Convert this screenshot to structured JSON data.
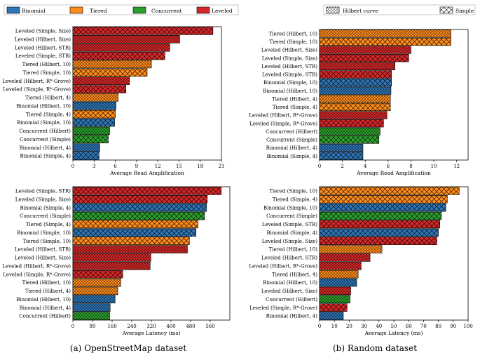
{
  "legend_left": [
    {
      "name": "Binomial",
      "color": "#2e75b6"
    },
    {
      "name": "Tiered",
      "color": "#ff8c1a"
    },
    {
      "name": "Concurrent",
      "color": "#2ca02c"
    },
    {
      "name": "Leveled",
      "color": "#d62728"
    }
  ],
  "legend_right": [
    {
      "name": "Hilbert curve",
      "pattern": "dots"
    },
    {
      "name": "Simple",
      "pattern": "cross"
    }
  ],
  "captions": {
    "left": "(a) OpenStreetMap dataset",
    "right": "(b) Random dataset"
  },
  "chart_data": [
    {
      "type": "bar",
      "orientation": "horizontal",
      "xlabel": "Average Read Amplification",
      "xlim": [
        0,
        21
      ],
      "xticks": [
        0,
        3,
        6,
        9,
        12,
        15,
        18,
        21
      ],
      "bars": [
        {
          "label": "Leveled (Simple, Size)",
          "value": 19.8,
          "family": "Leveled",
          "curve": "Simple"
        },
        {
          "label": "Leveled (Hilbert, Size)",
          "value": 15.1,
          "family": "Leveled",
          "curve": "Hilbert"
        },
        {
          "label": "Leveled (Hilbert, STR)",
          "value": 13.7,
          "family": "Leveled",
          "curve": "Hilbert"
        },
        {
          "label": "Leveled (Simple, STR)",
          "value": 13.0,
          "family": "Leveled",
          "curve": "Simple"
        },
        {
          "label": "Tiered (Hilbert, 10)",
          "value": 11.1,
          "family": "Tiered",
          "curve": "Hilbert"
        },
        {
          "label": "Tiered (Simple, 10)",
          "value": 10.5,
          "family": "Tiered",
          "curve": "Simple"
        },
        {
          "label": "Leveled (Hilbert, R*-Grove)",
          "value": 8.0,
          "family": "Leveled",
          "curve": "Hilbert"
        },
        {
          "label": "Leveled (Simple, R*-Grove)",
          "value": 7.5,
          "family": "Leveled",
          "curve": "Simple"
        },
        {
          "label": "Tiered (Hilbert, 4)",
          "value": 6.4,
          "family": "Tiered",
          "curve": "Hilbert"
        },
        {
          "label": "Binomial (Hilbert, 10)",
          "value": 6.1,
          "family": "Binomial",
          "curve": "Hilbert"
        },
        {
          "label": "Tiered (Simple, 4)",
          "value": 6.0,
          "family": "Tiered",
          "curve": "Simple"
        },
        {
          "label": "Binomial (Simple, 10)",
          "value": 5.9,
          "family": "Binomial",
          "curve": "Simple"
        },
        {
          "label": "Concurrent (Hilbert)",
          "value": 5.2,
          "family": "Concurrent",
          "curve": "Hilbert"
        },
        {
          "label": "Concurrent (Simple)",
          "value": 5.0,
          "family": "Concurrent",
          "curve": "Simple"
        },
        {
          "label": "Binomial (Hilbert, 4)",
          "value": 3.8,
          "family": "Binomial",
          "curve": "Hilbert"
        },
        {
          "label": "Binomial (Simple, 4)",
          "value": 3.7,
          "family": "Binomial",
          "curve": "Simple"
        }
      ]
    },
    {
      "type": "bar",
      "orientation": "horizontal",
      "xlabel": "Average Read Amplification",
      "xlim": [
        0,
        13
      ],
      "xticks": [
        0,
        2,
        4,
        6,
        8,
        10,
        12
      ],
      "bars": [
        {
          "label": "Tiered (Hilbert, 10)",
          "value": 11.5,
          "family": "Tiered",
          "curve": "Hilbert"
        },
        {
          "label": "Tiered (Simple, 10)",
          "value": 11.5,
          "family": "Tiered",
          "curve": "Simple"
        },
        {
          "label": "Leveled (Hilbert, Size)",
          "value": 8.0,
          "family": "Leveled",
          "curve": "Hilbert"
        },
        {
          "label": "Leveled (Simple, Size)",
          "value": 7.8,
          "family": "Leveled",
          "curve": "Simple"
        },
        {
          "label": "Leveled (Hilbert, STR)",
          "value": 6.6,
          "family": "Leveled",
          "curve": "Hilbert"
        },
        {
          "label": "Leveled (Simple, STR)",
          "value": 6.3,
          "family": "Leveled",
          "curve": "Simple"
        },
        {
          "label": "Binomial (Simple, 10)",
          "value": 6.3,
          "family": "Binomial",
          "curve": "Simple"
        },
        {
          "label": "Binomial (Hilbert, 10)",
          "value": 6.25,
          "family": "Binomial",
          "curve": "Hilbert"
        },
        {
          "label": "Tiered (Hilbert, 4)",
          "value": 6.2,
          "family": "Tiered",
          "curve": "Hilbert"
        },
        {
          "label": "Tiered (Simple, 4)",
          "value": 6.2,
          "family": "Tiered",
          "curve": "Simple"
        },
        {
          "label": "Leveled (Hilbert, R*-Grove)",
          "value": 5.9,
          "family": "Leveled",
          "curve": "Hilbert"
        },
        {
          "label": "Leveled (Simple, R*-Grove)",
          "value": 5.6,
          "family": "Leveled",
          "curve": "Simple"
        },
        {
          "label": "Concurrent (Hilbert)",
          "value": 5.3,
          "family": "Concurrent",
          "curve": "Hilbert"
        },
        {
          "label": "Concurrent (Simple)",
          "value": 5.2,
          "family": "Concurrent",
          "curve": "Simple"
        },
        {
          "label": "Binomial (Hilbert, 4)",
          "value": 3.8,
          "family": "Binomial",
          "curve": "Hilbert"
        },
        {
          "label": "Binomial (Simple, 4)",
          "value": 3.8,
          "family": "Binomial",
          "curve": "Simple"
        }
      ]
    },
    {
      "type": "bar",
      "orientation": "horizontal",
      "xlabel": "Average Latency (ms)",
      "xlim": [
        0,
        640
      ],
      "xticks": [
        0,
        80,
        160,
        240,
        320,
        400,
        480,
        560
      ],
      "bars": [
        {
          "label": "Leveled (Simple, STR)",
          "value": 605,
          "family": "Leveled",
          "curve": "Simple"
        },
        {
          "label": "Leveled (Simple, Size)",
          "value": 548,
          "family": "Leveled",
          "curve": "Simple"
        },
        {
          "label": "Binomial (Simple, 4)",
          "value": 545,
          "family": "Binomial",
          "curve": "Simple"
        },
        {
          "label": "Concurrent (Simple)",
          "value": 537,
          "family": "Concurrent",
          "curve": "Simple"
        },
        {
          "label": "Tiered (Simple, 4)",
          "value": 510,
          "family": "Tiered",
          "curve": "Simple"
        },
        {
          "label": "Binomial (Simple, 10)",
          "value": 502,
          "family": "Binomial",
          "curve": "Simple"
        },
        {
          "label": "Tiered (Simple, 10)",
          "value": 475,
          "family": "Tiered",
          "curve": "Simple"
        },
        {
          "label": "Leveled (Hilbert, STR)",
          "value": 467,
          "family": "Leveled",
          "curve": "Hilbert"
        },
        {
          "label": "Leveled (Hilbert, Size)",
          "value": 318,
          "family": "Leveled",
          "curve": "Hilbert"
        },
        {
          "label": "Leveled (Hilbert, R*-Grove)",
          "value": 315,
          "family": "Leveled",
          "curve": "Hilbert"
        },
        {
          "label": "Leveled (Simple, R*-Grove)",
          "value": 203,
          "family": "Leveled",
          "curve": "Simple"
        },
        {
          "label": "Tiered (Hilbert, 10)",
          "value": 195,
          "family": "Tiered",
          "curve": "Hilbert"
        },
        {
          "label": "Tiered (Hilbert, 4)",
          "value": 183,
          "family": "Tiered",
          "curve": "Hilbert"
        },
        {
          "label": "Binomial (Hilbert, 10)",
          "value": 172,
          "family": "Binomial",
          "curve": "Hilbert"
        },
        {
          "label": "Binomial (Hilbert, 4)",
          "value": 152,
          "family": "Binomial",
          "curve": "Hilbert"
        },
        {
          "label": "Concurrent (Hilbert)",
          "value": 150,
          "family": "Concurrent",
          "curve": "Hilbert"
        }
      ]
    },
    {
      "type": "bar",
      "orientation": "horizontal",
      "xlabel": "Average Latency (ms)",
      "xlim": [
        0,
        100
      ],
      "xticks": [
        0,
        10,
        20,
        30,
        40,
        50,
        60,
        70,
        80,
        90,
        100
      ],
      "bars": [
        {
          "label": "Tiered (Simple, 10)",
          "value": 94,
          "family": "Tiered",
          "curve": "Simple"
        },
        {
          "label": "Tiered (Simple, 4)",
          "value": 86,
          "family": "Tiered",
          "curve": "Simple"
        },
        {
          "label": "Binomial (Simple, 10)",
          "value": 85,
          "family": "Binomial",
          "curve": "Simple"
        },
        {
          "label": "Concurrent (Simple)",
          "value": 82,
          "family": "Concurrent",
          "curve": "Simple"
        },
        {
          "label": "Leveled (Simple, STR)",
          "value": 81,
          "family": "Leveled",
          "curve": "Simple"
        },
        {
          "label": "Binomial (Simple, 4)",
          "value": 80,
          "family": "Binomial",
          "curve": "Simple"
        },
        {
          "label": "Leveled (Simple, Size)",
          "value": 79,
          "family": "Leveled",
          "curve": "Simple"
        },
        {
          "label": "Tiered (Hilbert, 10)",
          "value": 42,
          "family": "Tiered",
          "curve": "Hilbert"
        },
        {
          "label": "Leveled (Hilbert, STR)",
          "value": 34,
          "family": "Leveled",
          "curve": "Hilbert"
        },
        {
          "label": "Leveled (Hilbert, R*-Grove)",
          "value": 28,
          "family": "Leveled",
          "curve": "Hilbert"
        },
        {
          "label": "Tiered (Hilbert, 4)",
          "value": 26,
          "family": "Tiered",
          "curve": "Hilbert"
        },
        {
          "label": "Binomial (Hilbert, 10)",
          "value": 25,
          "family": "Binomial",
          "curve": "Hilbert"
        },
        {
          "label": "Leveled (Hilbert, Size)",
          "value": 21,
          "family": "Leveled",
          "curve": "Hilbert"
        },
        {
          "label": "Concurrent (Hilbert)",
          "value": 20.5,
          "family": "Concurrent",
          "curve": "Hilbert"
        },
        {
          "label": "Leveled (Simple, R*-Grove)",
          "value": 18.5,
          "family": "Leveled",
          "curve": "Simple"
        },
        {
          "label": "Binomial (Hilbert, 4)",
          "value": 16,
          "family": "Binomial",
          "curve": "Hilbert"
        }
      ]
    }
  ]
}
